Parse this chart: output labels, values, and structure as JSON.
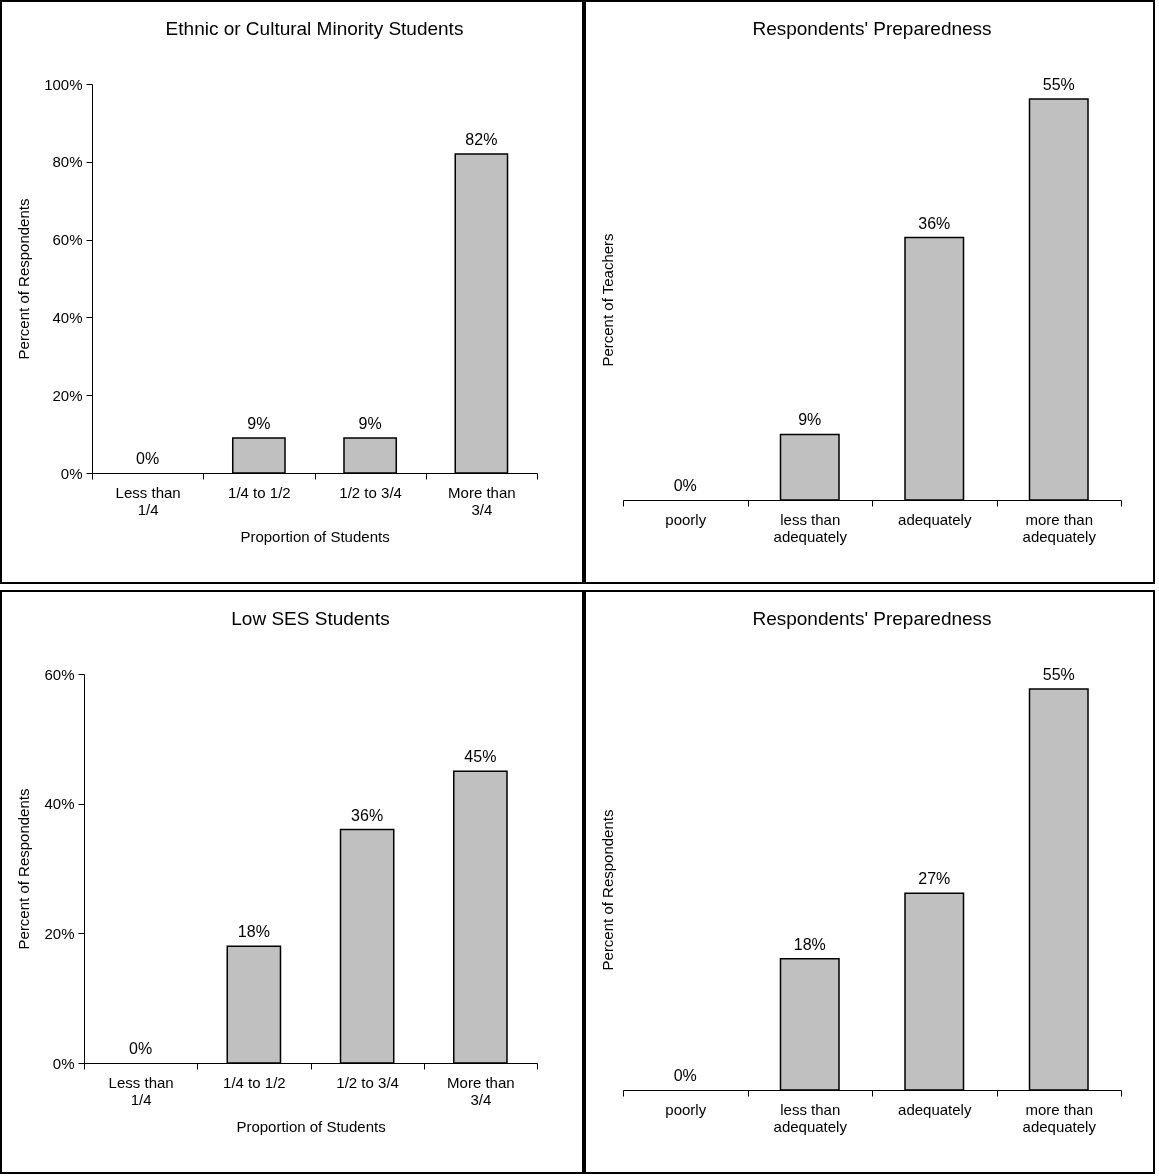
{
  "chart_data": [
    {
      "type": "bar",
      "title": "Ethnic or Cultural Minority Students",
      "xlabel": "Proportion of Students",
      "ylabel": "Percent of Respondents",
      "categories": [
        "Less than 1/4",
        "1/4 to 1/2",
        "1/2 to 3/4",
        "More than 3/4"
      ],
      "values": [
        0,
        9,
        9,
        82
      ],
      "value_labels": [
        "0%",
        "9%",
        "9%",
        "82%"
      ],
      "color": "#c0c0c0",
      "ylim": [
        0,
        100
      ],
      "yticks": [
        {
          "value": 0,
          "label": "0%"
        },
        {
          "value": 20,
          "label": "20%"
        },
        {
          "value": 40,
          "label": "40%"
        },
        {
          "value": 60,
          "label": "60%"
        },
        {
          "value": 80,
          "label": "80%"
        },
        {
          "value": 100,
          "label": "100%"
        }
      ]
    },
    {
      "type": "bar",
      "title": "Respondents' Preparedness",
      "ylabel": "Percent of Teachers",
      "categories": [
        "poorly",
        "less than adequately",
        "adequately",
        "more than adequately"
      ],
      "values": [
        0,
        9,
        36,
        55
      ],
      "value_labels": [
        "0%",
        "9%",
        "36%",
        "55%"
      ],
      "color": "#c0c0c0",
      "tick_labels": "x"
    },
    {
      "type": "bar",
      "title": "Low SES Students",
      "xlabel": "Proportion of Students",
      "ylabel": "Percent of Respondents",
      "categories": [
        "Less than 1/4",
        "1/4 to 1/2",
        "1/2 to 3/4",
        "More than 3/4"
      ],
      "values": [
        0,
        18,
        36,
        45
      ],
      "value_labels": [
        "0%",
        "18%",
        "36%",
        "45%"
      ],
      "color": "#c0c0c0",
      "ylim": [
        0,
        60
      ],
      "yticks": [
        {
          "value": 0,
          "label": "0%"
        },
        {
          "value": 20,
          "label": "20%"
        },
        {
          "value": 40,
          "label": "40%"
        },
        {
          "value": 60,
          "label": "60%"
        }
      ]
    },
    {
      "type": "bar",
      "title": "Respondents' Preparedness",
      "ylabel": "Percent of Respondents",
      "categories": [
        "poorly",
        "less than adequately",
        "adequately",
        "more than adequately"
      ],
      "values": [
        0,
        18,
        27,
        55
      ],
      "value_labels": [
        "0%",
        "18%",
        "27%",
        "55%"
      ],
      "color": "#c0c0c0",
      "tick_labels": "x"
    }
  ]
}
